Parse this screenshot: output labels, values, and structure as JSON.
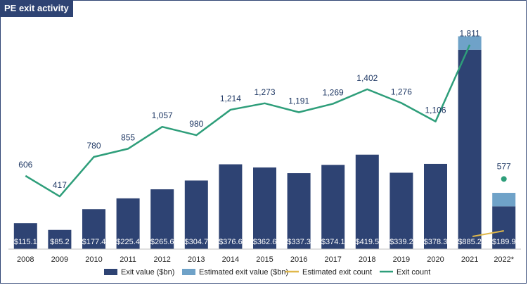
{
  "chart_data": {
    "type": "bar",
    "title": "PE exit activity",
    "categories": [
      "2008",
      "2009",
      "2010",
      "2011",
      "2012",
      "2013",
      "2014",
      "2015",
      "2016",
      "2017",
      "2018",
      "2019",
      "2020",
      "2021",
      "2022*"
    ],
    "series": [
      {
        "name": "Exit value ($bn)",
        "kind": "bar",
        "values": [
          115.1,
          85.2,
          177.4,
          225.4,
          265.6,
          304.7,
          376.6,
          362.6,
          337.3,
          374.1,
          419.5,
          339.2,
          378.3,
          885.2,
          189.9
        ],
        "labels": [
          "$115.1",
          "$85.2",
          "$177.4",
          "$225.4",
          "$265.6",
          "$304.7",
          "$376.6",
          "$362.6",
          "$337.3",
          "$374.1",
          "$419.5",
          "$339.2",
          "$378.3",
          "$885.2",
          "$189.9"
        ],
        "color": "#2e4373"
      },
      {
        "name": "Estimated exit value ($bn)",
        "kind": "bar-stacked",
        "values": [
          0,
          0,
          0,
          0,
          0,
          0,
          0,
          0,
          0,
          0,
          0,
          0,
          0,
          60,
          60
        ],
        "color": "#6fa2c8"
      },
      {
        "name": "Estimated exit count",
        "kind": "line",
        "color": "#e0b84a"
      },
      {
        "name": "Exit count",
        "kind": "line",
        "values": [
          606,
          417,
          780,
          855,
          1057,
          980,
          1214,
          1273,
          1191,
          1269,
          1402,
          1276,
          1106,
          1811,
          577
        ],
        "labels": [
          "606",
          "417",
          "780",
          "855",
          "1,057",
          "980",
          "1,214",
          "1,273",
          "1,191",
          "1,269",
          "1,402",
          "1,276",
          "1,106",
          "1,811",
          "577"
        ],
        "color": "#2e9e7a"
      }
    ],
    "grid": false,
    "legend_position": "bottom"
  }
}
